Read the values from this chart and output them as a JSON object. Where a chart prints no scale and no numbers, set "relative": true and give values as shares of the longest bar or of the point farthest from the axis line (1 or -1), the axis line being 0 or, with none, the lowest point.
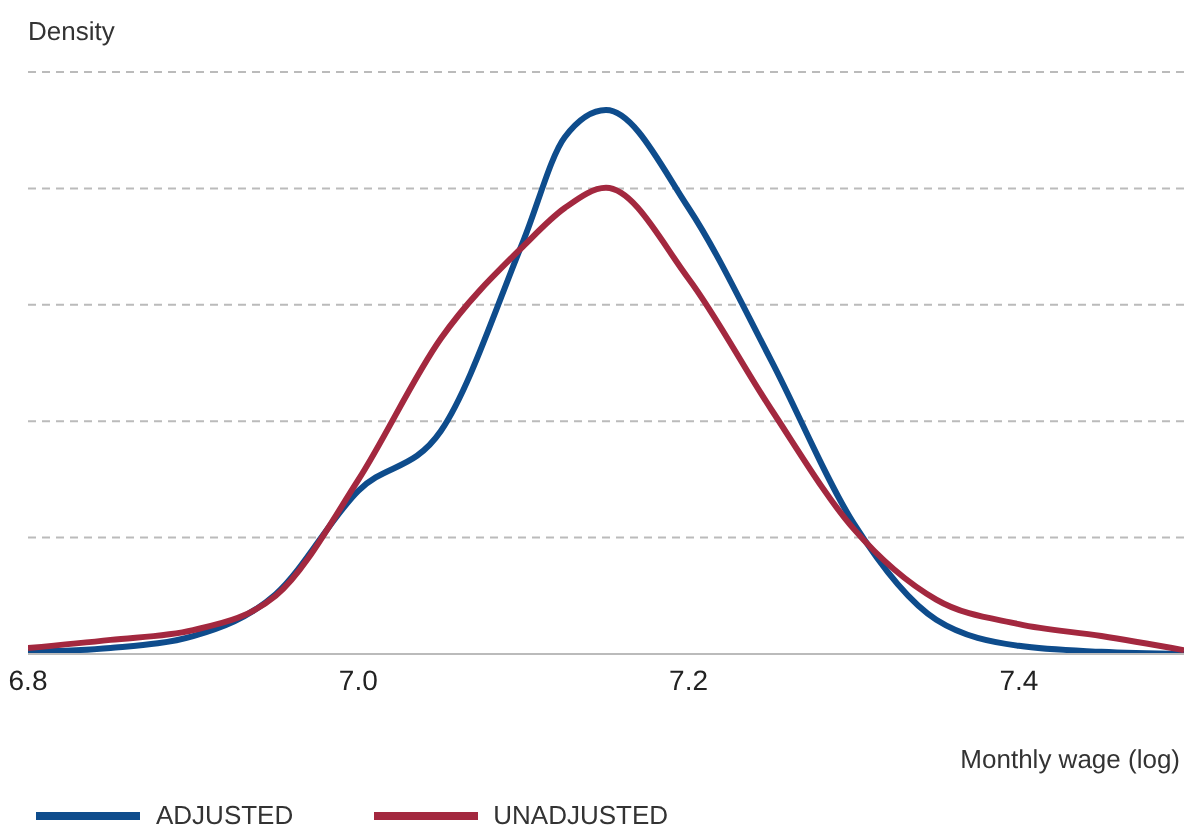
{
  "chart_data": {
    "type": "line",
    "relative": true,
    "ylabel": "Density",
    "xlabel": "Monthly wage (log)",
    "x": [
      6.8,
      6.85,
      6.9,
      6.95,
      7.0,
      7.05,
      7.1,
      7.125,
      7.15,
      7.2,
      7.25,
      7.3,
      7.35,
      7.4,
      7.45,
      7.5
    ],
    "series": [
      {
        "name": "ADJUSTED",
        "color": "#0e4c8c",
        "values": [
          0.004,
          0.011,
          0.033,
          0.11,
          0.3,
          0.41,
          0.76,
          0.95,
          1,
          0.82,
          0.54,
          0.24,
          0.063,
          0.015,
          0.004,
          0
        ]
      },
      {
        "name": "UNADJUSTED",
        "color": "#a3283f",
        "values": [
          0.011,
          0.026,
          0.044,
          0.107,
          0.32,
          0.58,
          0.75,
          0.82,
          0.857,
          0.69,
          0.45,
          0.23,
          0.1,
          0.055,
          0.033,
          0.007
        ]
      }
    ],
    "xlim": [
      6.8,
      7.5
    ],
    "xticks": [
      6.8,
      {
        "value": 7,
        "label": "7.0"
      },
      7.2,
      7.4
    ],
    "grid": "y",
    "legend": "bottom",
    "marker": "none",
    "line_style": "solid"
  }
}
